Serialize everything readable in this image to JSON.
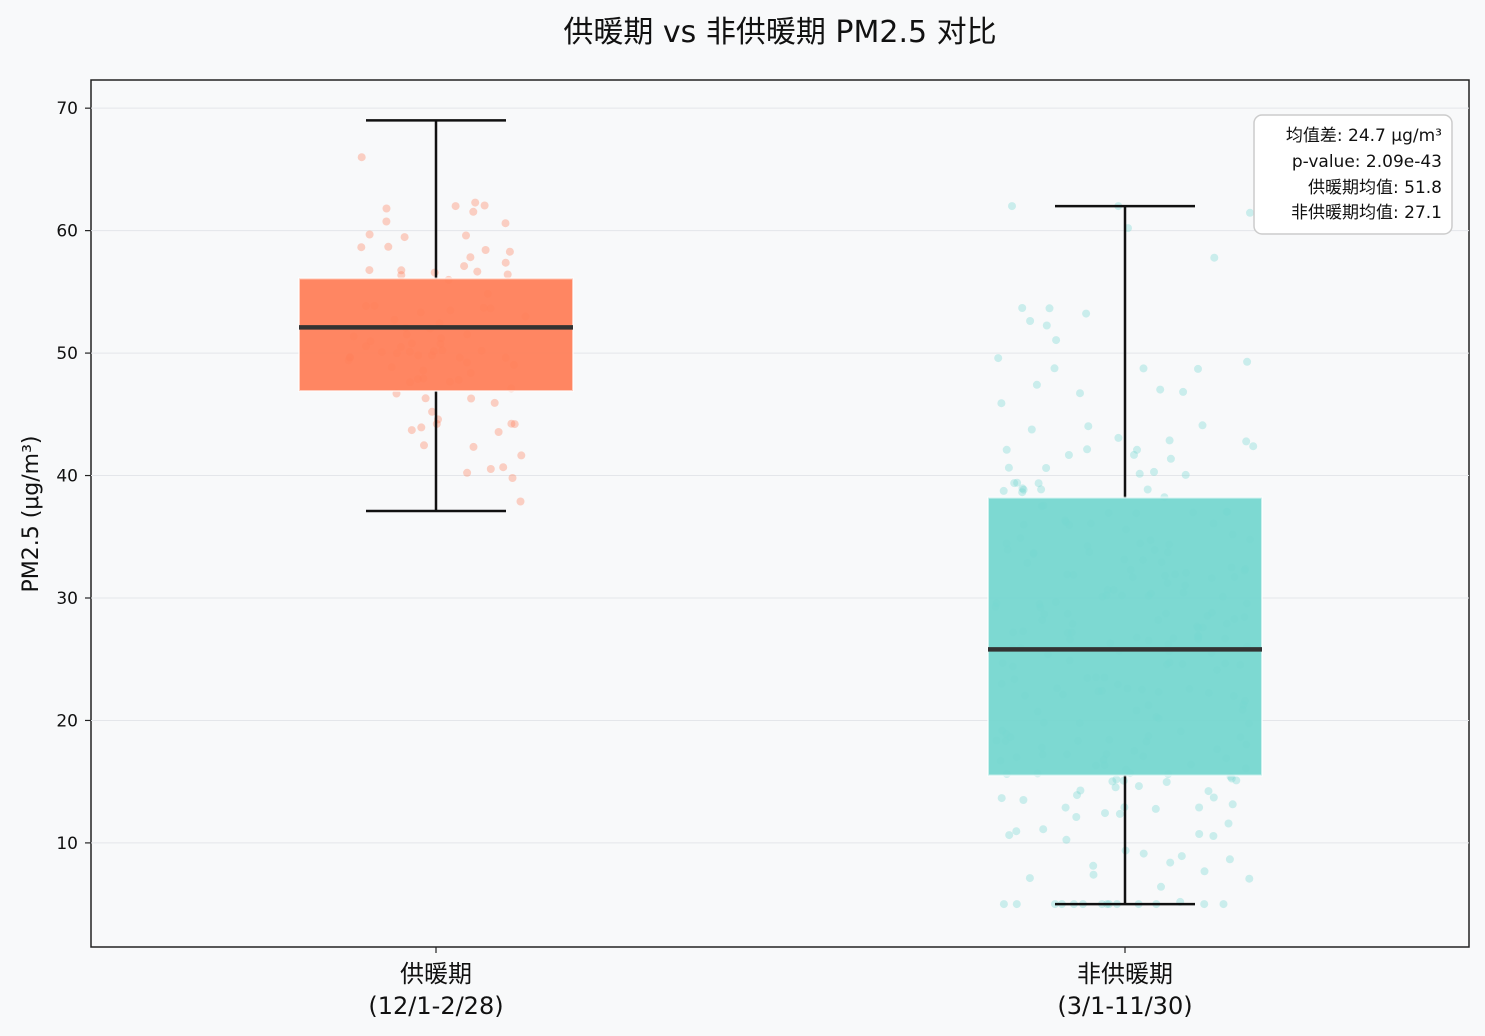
{
  "chart_data": {
    "type": "box",
    "title": "供暖期 vs 非供暖期 PM2.5 对比",
    "ylabel": "PM2.5 (μg/m³)",
    "ylim": [
      1.5,
      72.3
    ],
    "yticks": [
      10,
      20,
      30,
      40,
      50,
      60,
      70
    ],
    "grid": true,
    "categories": [
      {
        "line1": "供暖期",
        "line2": "(12/1-2/28)"
      },
      {
        "line1": "非供暖期",
        "line2": "(3/1-11/30)"
      }
    ],
    "series": [
      {
        "category": "供暖期",
        "whisker_low": 37.1,
        "q1": 46.9,
        "median": 52.1,
        "q3": 56.1,
        "whisker_high": 69.0,
        "mean": 51.8,
        "color": "#ff7f5a"
      },
      {
        "category": "非供暖期",
        "whisker_low": 5.0,
        "q1": 15.5,
        "median": 25.8,
        "q3": 38.2,
        "whisker_high": 62.0,
        "mean": 27.1,
        "color": "#76d7d0"
      }
    ],
    "stats_box": {
      "line1": "均值差: 24.7 μg/m³",
      "line2": "p-value: 2.09e-43",
      "line3": "供暖期均值: 51.8",
      "line4": "非供暖期均值: 27.1"
    }
  }
}
